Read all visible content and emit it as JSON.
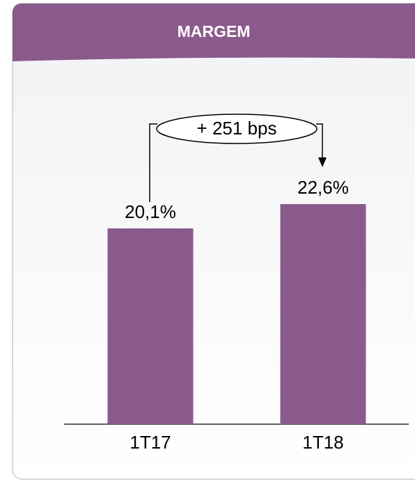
{
  "chart_data": {
    "type": "bar",
    "title": "MARGEM",
    "categories": [
      "1T17",
      "1T18"
    ],
    "values": [
      20.1,
      22.6
    ],
    "value_labels": [
      "20,1%",
      "22,6%"
    ],
    "color": "#8b5a8c",
    "annotation": "+ 251 bps"
  }
}
